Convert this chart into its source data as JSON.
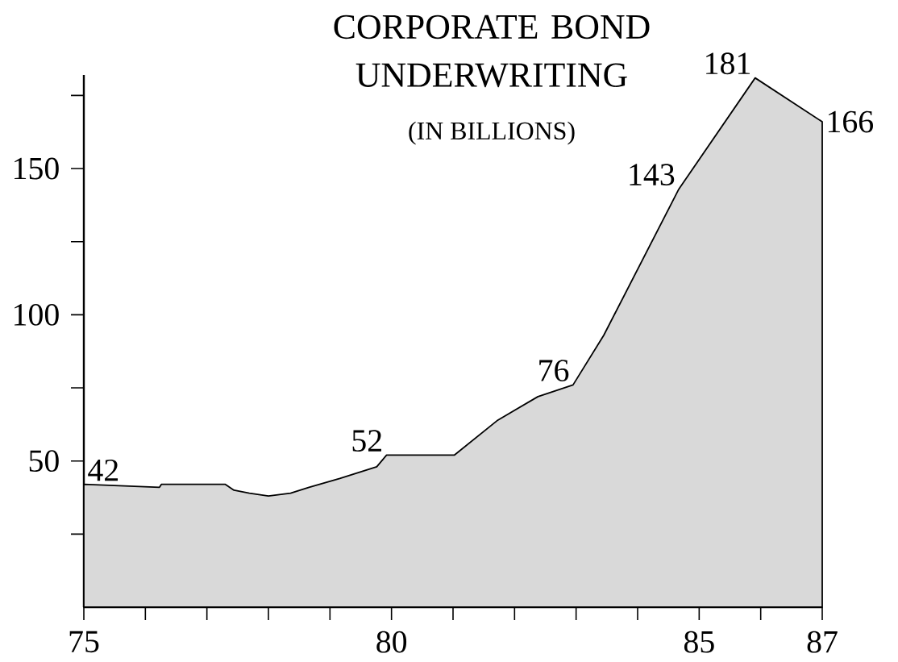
{
  "chart_data": {
    "type": "area",
    "title": "CORPORATE BOND UNDERWRITING",
    "subtitle": "(IN BILLIONS)",
    "x": [
      75.0,
      76.23,
      76.26,
      77.3,
      77.44,
      77.69,
      78.0,
      78.36,
      78.66,
      79.16,
      79.76,
      79.92,
      81.02,
      81.73,
      82.38,
      82.95,
      83.45,
      84.67,
      85.91,
      87.0
    ],
    "values": [
      42,
      41,
      42,
      42,
      40,
      39,
      38,
      39,
      41,
      44,
      48,
      52,
      52,
      64,
      72,
      76,
      93,
      143,
      181,
      166
    ],
    "value_labels": [
      "42",
      null,
      null,
      null,
      null,
      null,
      null,
      null,
      null,
      null,
      null,
      "52",
      null,
      null,
      null,
      "76",
      null,
      "143",
      "181",
      "166"
    ],
    "color": "#d9d9d9",
    "xlim": [
      75,
      87
    ],
    "ylim": [
      0,
      182
    ],
    "xticks": [
      75,
      {
        "value": 76,
        "label": null
      },
      {
        "value": 77,
        "label": null
      },
      {
        "value": 78,
        "label": null
      },
      {
        "value": 79,
        "label": null
      },
      80,
      {
        "value": 81,
        "label": null
      },
      {
        "value": 82,
        "label": null
      },
      {
        "value": 83,
        "label": null
      },
      {
        "value": 84,
        "label": null
      },
      85,
      {
        "value": 86,
        "label": null
      },
      87
    ],
    "yticks": [
      {
        "value": 25,
        "label": null
      },
      50,
      {
        "value": 75,
        "label": null
      },
      100,
      {
        "value": 125,
        "label": null
      },
      150,
      {
        "value": 175,
        "label": null
      }
    ]
  }
}
